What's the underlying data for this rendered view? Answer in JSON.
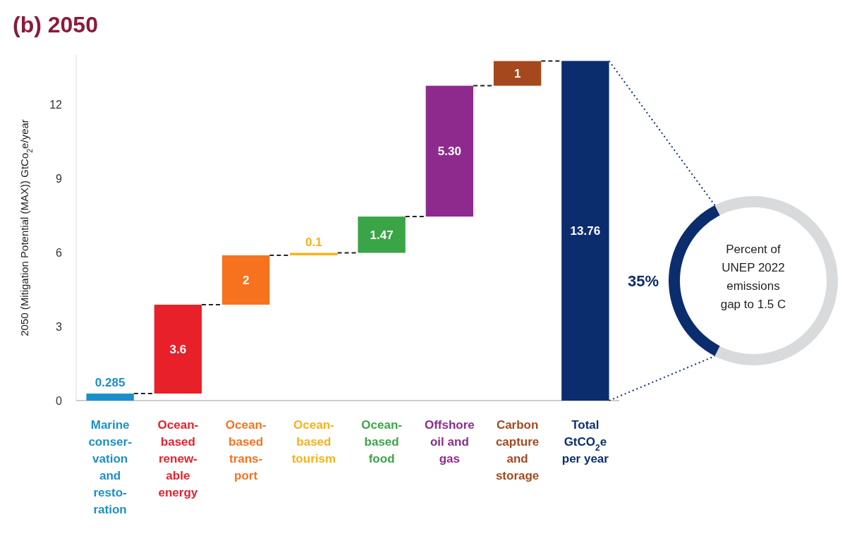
{
  "chart_data": [
    {
      "type": "bar",
      "title": "(b) 2050",
      "ylabel": "2050 (Mitigation Potential (MAX)) GtCo$_{2}$e/year",
      "categories": [
        "Marine\nconser-\nvation\nand\nresto-\nration",
        "Ocean-\nbased\nrenew-\nable\nenergy",
        "Ocean-\nbased\ntrans-\nport",
        "Ocean-\nbased\ntourism",
        "Ocean-\nbased\nfood",
        "Offshore\noil and\ngas",
        "Carbon\ncapture\nand\nstorage",
        "Total\nGtCO$_{2}$e\nper year"
      ],
      "values": [
        0.285,
        3.6,
        2,
        0.1,
        1.47,
        5.3,
        1,
        13.76
      ],
      "base": [
        0,
        0.285,
        3.885,
        5.885,
        5.985,
        7.455,
        12.755,
        0
      ],
      "colors": [
        "#1b8fcb",
        "#e8202a",
        "#f7721e",
        "#f6b21b",
        "#3aa547",
        "#8e2a8e",
        "#a5481e",
        "#0b2d6e"
      ],
      "value_labels": [
        "0.285",
        "3.6",
        "2",
        "0.1",
        "1.47",
        "5.30",
        "1",
        "13.76"
      ],
      "ylim": [
        0,
        14
      ],
      "yticks": [
        0,
        3,
        6,
        9,
        12
      ],
      "grid": false,
      "legend": false
    },
    {
      "type": "donut",
      "categories": [
        null,
        null
      ],
      "values": [
        35,
        65
      ],
      "colors": [
        "#0b2d6e",
        "#d9dadc"
      ],
      "value_labels": [
        "35%",
        null
      ],
      "annotations": [
        "Percent of\nUNEP 2022\nemissions\ngap to 1.5 C"
      ]
    }
  ]
}
